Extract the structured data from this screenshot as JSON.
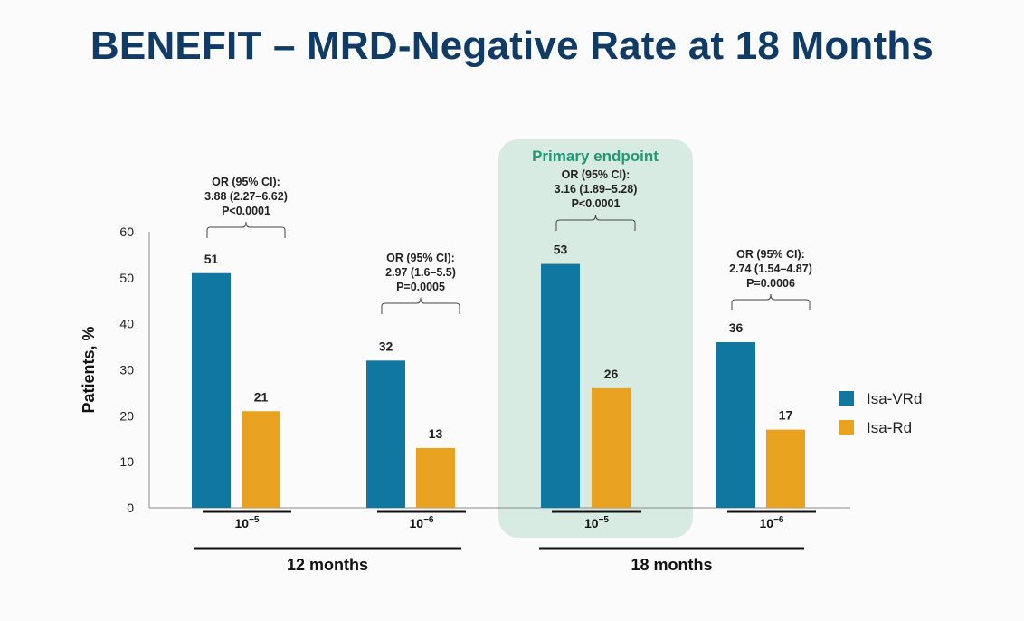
{
  "title": "BENEFIT – MRD-Negative Rate at 18 Months",
  "colors": {
    "isa_vrd": "#0f77a0",
    "isa_rd": "#e8a220",
    "highlight": "#d7ebe3",
    "highlight_text": "#1e9a74"
  },
  "chart_data": {
    "type": "bar",
    "ylabel": "Patients, %",
    "ylim": [
      0,
      60
    ],
    "yticks": [
      0,
      10,
      20,
      30,
      40,
      50,
      60
    ],
    "categories": [
      "10−5",
      "10−6",
      "10−5",
      "10−6"
    ],
    "category_groups": [
      {
        "label": "12 months",
        "categories": [
          0,
          1
        ]
      },
      {
        "label": "18 months",
        "categories": [
          2,
          3
        ]
      }
    ],
    "series": [
      {
        "name": "Isa-VRd",
        "values": [
          51,
          32,
          53,
          36
        ]
      },
      {
        "name": "Isa-Rd",
        "values": [
          21,
          13,
          26,
          17
        ]
      }
    ],
    "annotations": [
      {
        "category": 0,
        "lines": [
          "OR (95% CI):",
          "3.88 (2.27–6.62)",
          "P<0.0001"
        ]
      },
      {
        "category": 1,
        "lines": [
          "OR (95% CI):",
          "2.97 (1.6–5.5)",
          "P=0.0005"
        ]
      },
      {
        "category": 2,
        "lines": [
          "OR (95% CI):",
          "3.16 (1.89–5.28)",
          "P<0.0001"
        ]
      },
      {
        "category": 3,
        "lines": [
          "OR (95% CI):",
          "2.74 (1.54–4.87)",
          "P=0.0006"
        ]
      }
    ],
    "highlight": {
      "category": 2,
      "label": "Primary endpoint"
    },
    "legend_position": "right"
  }
}
